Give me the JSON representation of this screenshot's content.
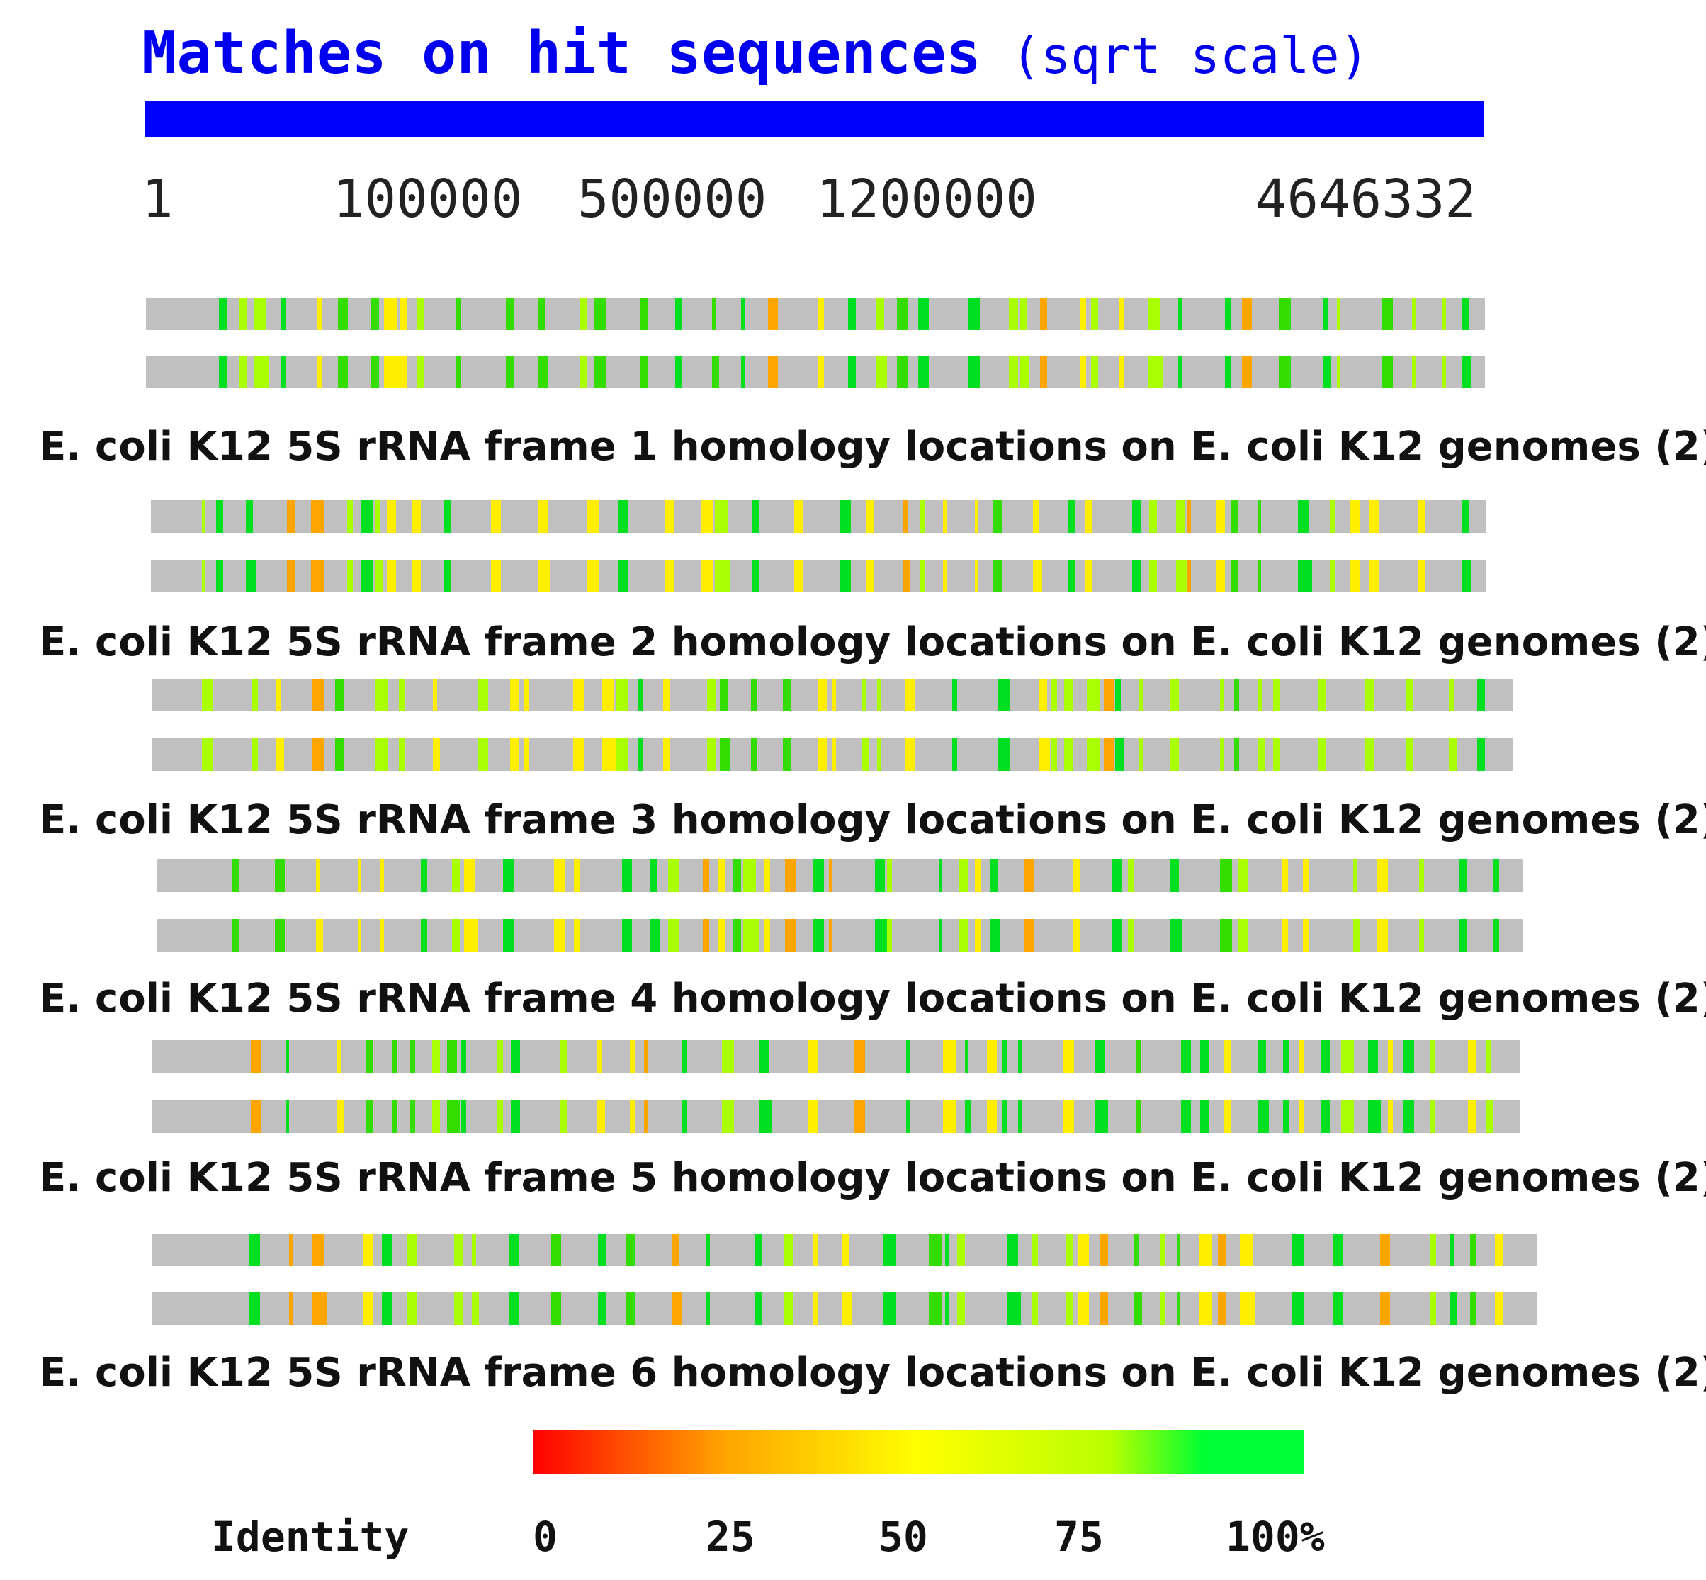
{
  "title": {
    "main": "Matches on hit sequences",
    "sub": "(sqrt scale)"
  },
  "scale_ticks": [
    "1",
    "100000",
    "500000",
    "1200000",
    "4646332"
  ],
  "colors": {
    "title": "#0000ee",
    "scale_bar": "#0000ff",
    "track": "#c0c0c0",
    "identity_100": "#00e020",
    "identity_90": "#33dd00",
    "identity_75": "#aaff00",
    "identity_50": "#ffee00",
    "identity_25": "#ffa500"
  },
  "frames": [
    {
      "label": "E. coli K12 5S rRNA frame 1 homology locations on E. coli K12 genomes (2):"
    },
    {
      "label": "E. coli K12 5S rRNA frame 2 homology locations on E. coli K12 genomes (2):"
    },
    {
      "label": "E. coli K12 5S rRNA frame 3 homology locations on E. coli K12 genomes (2):"
    },
    {
      "label": "E. coli K12 5S rRNA frame 4 homology locations on E. coli K12 genomes (2):"
    },
    {
      "label": "E. coli K12 5S rRNA frame 5 homology locations on E. coli K12 genomes (2):"
    },
    {
      "label": "E. coli K12 5S rRNA frame 6 homology locations on E. coli K12 genomes (2):"
    }
  ],
  "legend": {
    "title": "Identity",
    "ticks": [
      "0",
      "25",
      "50",
      "75",
      "100%"
    ],
    "scale_min": 0,
    "scale_max": 100
  }
}
